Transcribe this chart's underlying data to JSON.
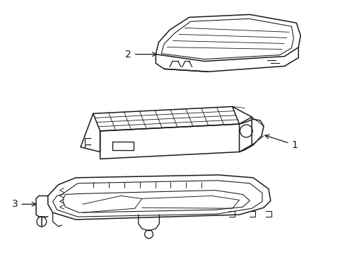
{
  "background_color": "#ffffff",
  "line_color": "#1a1a1a",
  "line_width": 1.1,
  "label_1": "1",
  "label_2": "2",
  "label_3": "3"
}
